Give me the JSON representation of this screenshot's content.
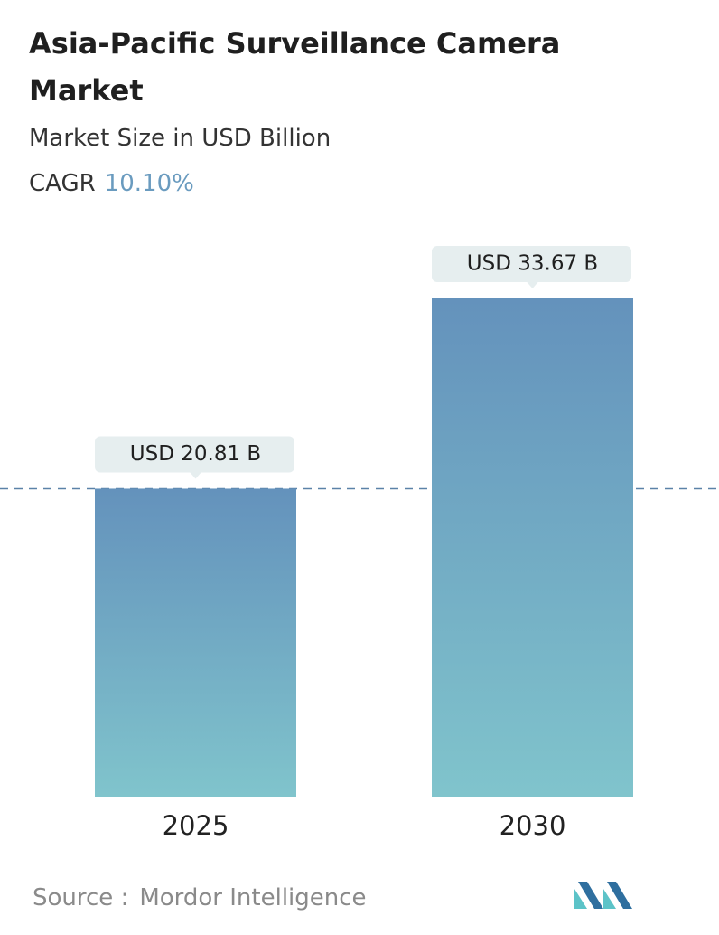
{
  "chart_data": {
    "type": "bar",
    "title": "Asia-Pacific Surveillance Camera Market",
    "subtitle": "Market Size in USD Billion",
    "cagr_label": "CAGR",
    "cagr_value": "10.10%",
    "categories": [
      "2025",
      "2030"
    ],
    "values": [
      20.81,
      33.67
    ],
    "value_labels": [
      "USD 20.81 B",
      "USD 33.67 B"
    ],
    "source_label": "Source :",
    "source": "Mordor Intelligence"
  }
}
